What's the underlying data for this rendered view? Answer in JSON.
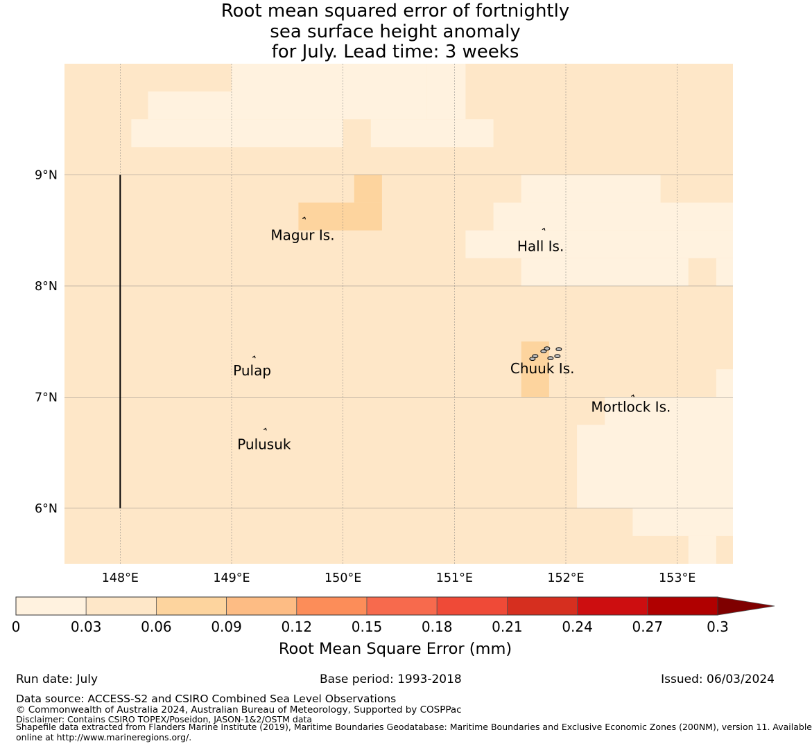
{
  "title_lines": [
    "Root mean squared error of fortnightly",
    "sea surface height anomaly",
    "for July. Lead time: 3 weeks"
  ],
  "footer": {
    "run_date": "Run date: July",
    "base_period": "Base period: 1993-2018",
    "issued": "Issued: 06/03/2024",
    "data_source": "Data source: ACCESS-S2 and CSIRO Combined Sea Level Observations",
    "copyright": "© Commonwealth of Australia 2024, Australian Bureau of Meteorology, Supported by COSPPac",
    "disclaimer": "Disclaimer: Contains CSIRO TOPEX/Poseidon, JASON-1&2/OSTM data",
    "shapefile_line1": "Shapefile data extracted from Flanders Marine Institute (2019), Maritime Boundaries Geodatabase: Maritime Boundaries and Exclusive Economic Zones (200NM), version 11. Available",
    "shapefile_line2": "online at http://www.marineregions.org/."
  },
  "chart_data": {
    "type": "heatmap",
    "title": "Root mean squared error of fortnightly sea surface height anomaly for July. Lead time: 3 weeks",
    "x_axis": {
      "range": [
        147.5,
        153.5
      ],
      "ticks": [
        148,
        149,
        150,
        151,
        152,
        153
      ],
      "tick_labels": [
        "148°E",
        "149°E",
        "150°E",
        "151°E",
        "152°E",
        "153°E"
      ]
    },
    "y_axis": {
      "range": [
        5.5,
        10.0
      ],
      "ticks": [
        6,
        7,
        8,
        9
      ],
      "tick_labels": [
        "6°N",
        "7°N",
        "8°N",
        "9°N"
      ]
    },
    "grid": true,
    "colorbar": {
      "label": "Root Mean Square Error (mm)",
      "boundaries": [
        0,
        0.03,
        0.06,
        0.09,
        0.12,
        0.15,
        0.18,
        0.21,
        0.24,
        0.27,
        0.3
      ],
      "tick_labels": [
        "0",
        "0.03",
        "0.06",
        "0.09",
        "0.12",
        "0.15",
        "0.18",
        "0.21",
        "0.24",
        "0.27",
        "0.3"
      ],
      "colors": [
        "#fff2df",
        "#fee7c8",
        "#fdd49e",
        "#fdbc84",
        "#fc8d59",
        "#f76a4d",
        "#ef4a37",
        "#d62f1f",
        "#cd0e10",
        "#b00000"
      ],
      "extend_color": "#7f0000",
      "extend": "max"
    },
    "cell_size_deg": 0.25,
    "base_class": 1,
    "cell_regions": [
      {
        "class": 0,
        "lon": [
          148.25,
          149.0
        ],
        "lat": [
          9.5,
          9.75
        ]
      },
      {
        "class": 0,
        "lon": [
          149.0,
          150.75
        ],
        "lat": [
          9.5,
          10.0
        ]
      },
      {
        "class": 0,
        "lon": [
          148.1,
          150.0
        ],
        "lat": [
          9.25,
          9.5
        ]
      },
      {
        "class": 0,
        "lon": [
          150.25,
          151.35
        ],
        "lat": [
          9.25,
          9.5
        ]
      },
      {
        "class": 0,
        "lon": [
          150.75,
          151.1
        ],
        "lat": [
          9.5,
          10.0
        ]
      },
      {
        "class": 0,
        "lon": [
          151.6,
          152.85
        ],
        "lat": [
          8.75,
          9.0
        ]
      },
      {
        "class": 0,
        "lon": [
          151.35,
          153.5
        ],
        "lat": [
          8.5,
          8.75
        ]
      },
      {
        "class": 0,
        "lon": [
          151.1,
          153.5
        ],
        "lat": [
          8.25,
          8.5
        ]
      },
      {
        "class": 0,
        "lon": [
          151.6,
          153.1
        ],
        "lat": [
          8.0,
          8.25
        ]
      },
      {
        "class": 0,
        "lon": [
          153.35,
          153.5
        ],
        "lat": [
          8.0,
          8.25
        ]
      },
      {
        "class": 0,
        "lon": [
          153.35,
          153.5
        ],
        "lat": [
          7.0,
          7.25
        ]
      },
      {
        "class": 0,
        "lon": [
          152.35,
          153.5
        ],
        "lat": [
          6.75,
          7.0
        ]
      },
      {
        "class": 0,
        "lon": [
          152.1,
          153.5
        ],
        "lat": [
          6.0,
          6.75
        ]
      },
      {
        "class": 0,
        "lon": [
          152.6,
          153.5
        ],
        "lat": [
          5.75,
          6.0
        ]
      },
      {
        "class": 0,
        "lon": [
          153.1,
          153.35
        ],
        "lat": [
          5.5,
          5.75
        ]
      },
      {
        "class": 2,
        "lon": [
          150.1,
          150.35
        ],
        "lat": [
          8.75,
          9.0
        ]
      },
      {
        "class": 2,
        "lon": [
          149.6,
          150.35
        ],
        "lat": [
          8.5,
          8.75
        ]
      },
      {
        "class": 2,
        "lon": [
          151.6,
          151.85
        ],
        "lat": [
          7.0,
          7.5
        ]
      }
    ],
    "boundary_line": {
      "lon": 148.0,
      "lat": [
        6.0,
        9.0
      ]
    },
    "islands": [
      {
        "name": "Magur Is.",
        "lon": 149.65,
        "lat": 8.6
      },
      {
        "name": "Hall Is.",
        "lon": 151.8,
        "lat": 8.5
      },
      {
        "name": "Pulap",
        "lon": 149.2,
        "lat": 7.35
      },
      {
        "name": "Chuuk Is.",
        "lon": 151.8,
        "lat": 7.4
      },
      {
        "name": "Mortlock Is.",
        "lon": 152.6,
        "lat": 7.0
      },
      {
        "name": "Pulusuk",
        "lon": 149.3,
        "lat": 6.7
      }
    ]
  }
}
